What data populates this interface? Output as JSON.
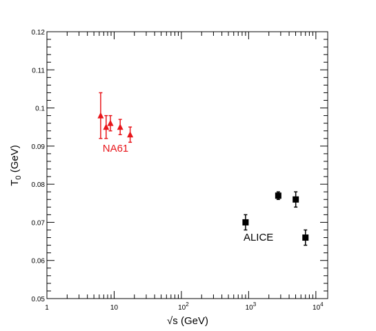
{
  "chart_data": {
    "type": "scatter",
    "title": "",
    "xlabel": "√s (GeV)",
    "ylabel": "T",
    "ylabel_sub": "0",
    "ylabel_unit": " (GeV)",
    "xscale": "log",
    "xlim": [
      1,
      15000
    ],
    "ylim": [
      0.05,
      0.12
    ],
    "grid": false,
    "x_ticks": [
      {
        "value": 1,
        "base": "1",
        "exp": ""
      },
      {
        "value": 10,
        "base": "10",
        "exp": ""
      },
      {
        "value": 100,
        "base": "10",
        "exp": "2"
      },
      {
        "value": 1000,
        "base": "10",
        "exp": "3"
      },
      {
        "value": 10000,
        "base": "10",
        "exp": "4"
      }
    ],
    "y_ticks": [
      {
        "value": 0.05,
        "label": "0.05"
      },
      {
        "value": 0.06,
        "label": "0.06"
      },
      {
        "value": 0.07,
        "label": "0.07"
      },
      {
        "value": 0.08,
        "label": "0.08"
      },
      {
        "value": 0.09,
        "label": "0.09"
      },
      {
        "value": 0.1,
        "label": "0.1"
      },
      {
        "value": 0.11,
        "label": "0.11"
      },
      {
        "value": 0.12,
        "label": "0.12"
      }
    ],
    "series": [
      {
        "name": "NA61",
        "color": "#e8161b",
        "marker": "triangle",
        "label_anchor": {
          "x": 10.5,
          "y": 0.0885
        },
        "points": [
          {
            "x": 6.3,
            "y": 0.098,
            "err_lo": 0.006,
            "err_hi": 0.006
          },
          {
            "x": 7.6,
            "y": 0.095,
            "err_lo": 0.003,
            "err_hi": 0.003
          },
          {
            "x": 8.8,
            "y": 0.096,
            "err_lo": 0.002,
            "err_hi": 0.002
          },
          {
            "x": 12.3,
            "y": 0.095,
            "err_lo": 0.002,
            "err_hi": 0.002
          },
          {
            "x": 17.3,
            "y": 0.093,
            "err_lo": 0.002,
            "err_hi": 0.002
          }
        ]
      },
      {
        "name": "ALICE",
        "color": "#000000",
        "marker": "square",
        "label_anchor": {
          "x": 1400,
          "y": 0.0652
        },
        "points": [
          {
            "x": 900,
            "y": 0.07,
            "err_lo": 0.002,
            "err_hi": 0.002
          },
          {
            "x": 2760,
            "y": 0.077,
            "err_lo": 0.001,
            "err_hi": 0.001
          },
          {
            "x": 5020,
            "y": 0.076,
            "err_lo": 0.002,
            "err_hi": 0.002
          },
          {
            "x": 7000,
            "y": 0.066,
            "err_lo": 0.002,
            "err_hi": 0.002
          }
        ]
      }
    ]
  }
}
